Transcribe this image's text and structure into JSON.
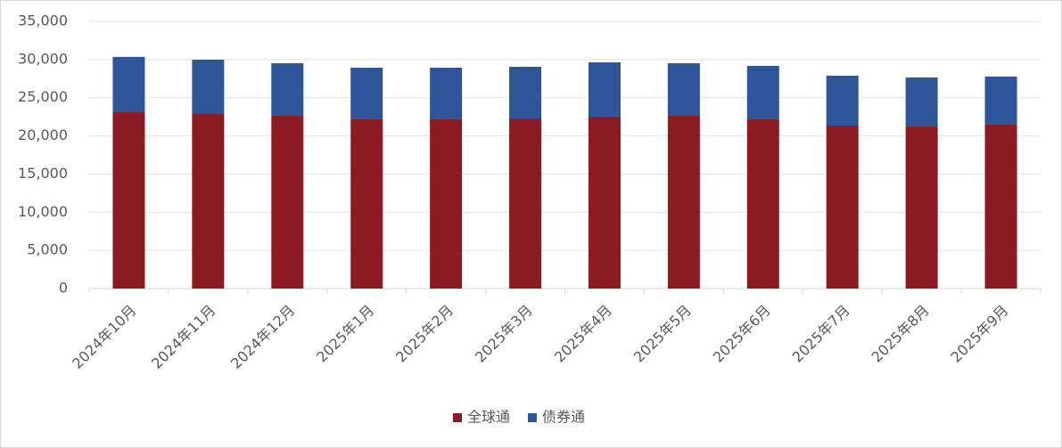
{
  "chart_data": {
    "type": "stacked_bar",
    "categories": [
      "2024年10月",
      "2024年11月",
      "2024年12月",
      "2025年1月",
      "2025年2月",
      "2025年3月",
      "2025年4月",
      "2025年5月",
      "2025年6月",
      "2025年7月",
      "2025年8月",
      "2025年9月"
    ],
    "series": [
      {
        "name": "全球通",
        "color": "#8b1a22",
        "values": [
          23100,
          22870,
          22630,
          22170,
          22170,
          22280,
          22520,
          22630,
          22170,
          21350,
          21230,
          21470
        ]
      },
      {
        "name": "债券通",
        "color": "#2e5597",
        "values": [
          7250,
          7110,
          6890,
          6760,
          6760,
          6770,
          7110,
          6890,
          7000,
          6530,
          6420,
          6300
        ]
      }
    ],
    "ylim": [
      0,
      35000
    ],
    "yticks": [
      0,
      {
        "value": 5000,
        "label": "5,000"
      },
      {
        "value": 10000,
        "label": "10,000"
      },
      {
        "value": 15000,
        "label": "15,000"
      },
      {
        "value": 20000,
        "label": "20,000"
      },
      {
        "value": 25000,
        "label": "25,000"
      },
      {
        "value": 30000,
        "label": "30,000"
      },
      {
        "value": 35000,
        "label": "35,000"
      }
    ],
    "grid": true,
    "legend": "bottom"
  }
}
